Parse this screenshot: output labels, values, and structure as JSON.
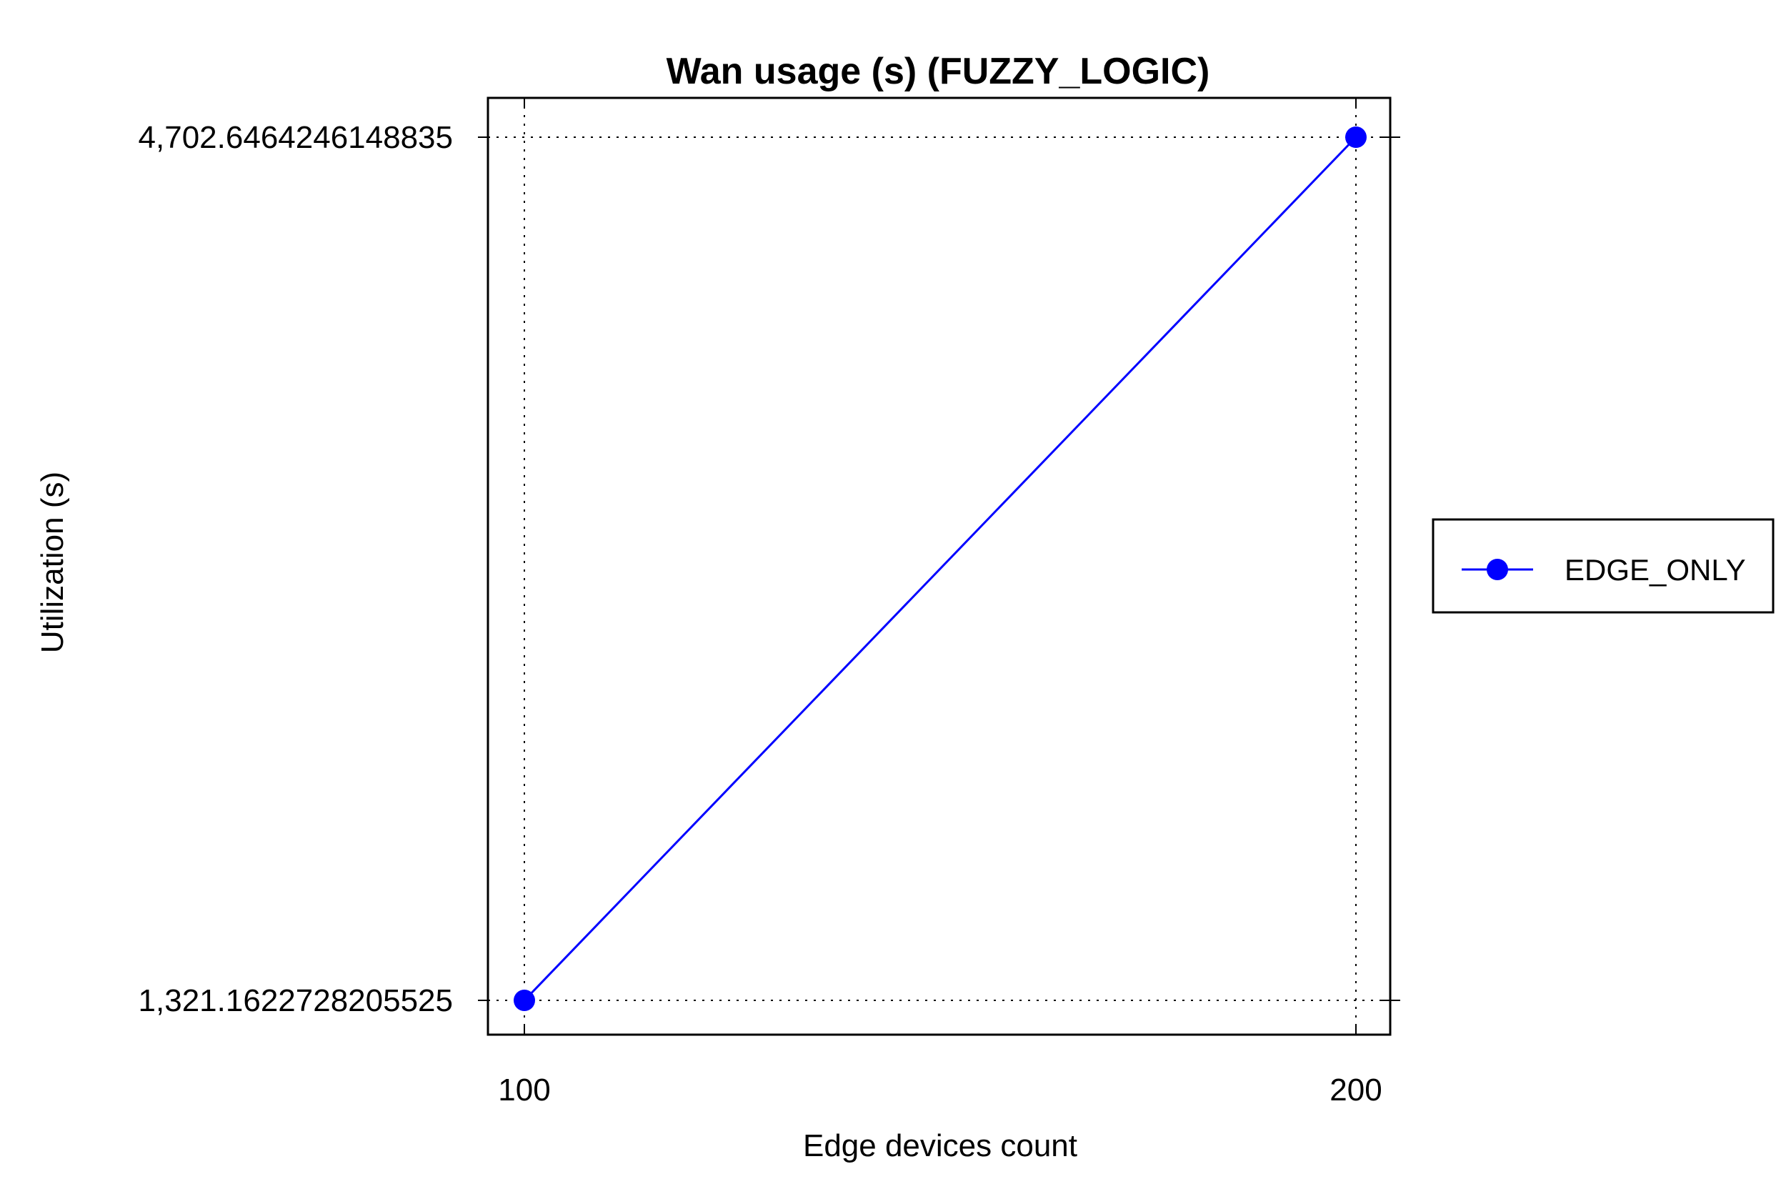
{
  "chart_data": {
    "type": "line",
    "title": "Wan usage (s) (FUZZY_LOGIC)",
    "xlabel": "Edge devices count",
    "ylabel": "Utilization (s)",
    "x": [
      100,
      200
    ],
    "x_tick_labels": [
      "100",
      "200"
    ],
    "y_tick_values": [
      1321.1622728205525,
      4702.6464246148835
    ],
    "y_tick_labels": [
      "1,321.1622728205525",
      "4,702.6464246148835"
    ],
    "grid": true,
    "legend_position": "right",
    "series": [
      {
        "name": "EDGE_ONLY",
        "color": "#0000ff",
        "marker": "circle",
        "x": [
          100,
          200
        ],
        "values": [
          1321.1622728205525,
          4702.6464246148835
        ]
      }
    ]
  }
}
